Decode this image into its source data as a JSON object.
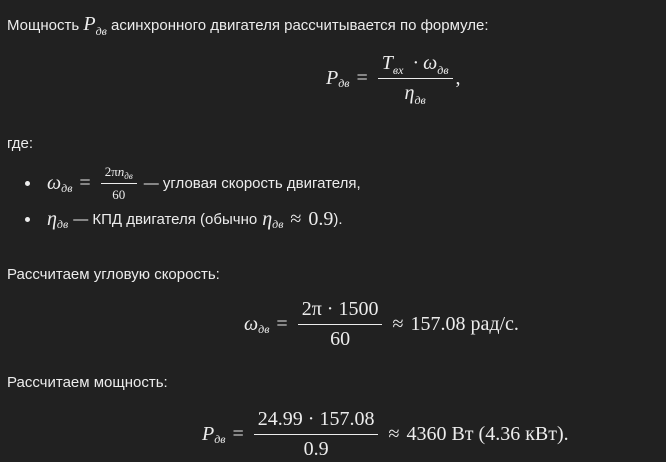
{
  "intro": {
    "before": "Мощность",
    "var": "P",
    "sub": "дв",
    "after": "асинхронного двигателя рассчитывается по формуле:"
  },
  "formula_power": {
    "var": "P",
    "sub": "дв",
    "eq": "=",
    "num_var": "T",
    "num_sub": "вх",
    "dot": "·",
    "num_var2": "ω",
    "num_sub2": "дв",
    "den_var": "η",
    "den_sub": "дв",
    "end": ","
  },
  "where": "где:",
  "bullets": [
    {
      "var": "ω",
      "sub": "дв",
      "eq": "=",
      "num": "2π",
      "num_var": "n",
      "num_sub": "дв",
      "den": "60",
      "text": "— угловая скорость двигателя,"
    },
    {
      "var": "η",
      "sub": "дв",
      "text": "— КПД двигателя (обычно",
      "var2": "η",
      "sub2": "дв",
      "approx": "≈",
      "value": "0.9",
      "end": ")."
    }
  ],
  "step_speed": {
    "heading": "Рассчитаем угловую скорость:",
    "var": "ω",
    "sub": "дв",
    "eq": "=",
    "num": "2π · 1500",
    "den": "60",
    "approx": "≈",
    "result": "157.08",
    "unit": "рад/с."
  },
  "step_power": {
    "heading": "Рассчитаем мощность:",
    "var": "P",
    "sub": "дв",
    "eq": "=",
    "num": "24.99 · 157.08",
    "den": "0.9",
    "approx": "≈",
    "result": "4360",
    "unit": "Вт",
    "extra": "(4.36 кВт)."
  }
}
